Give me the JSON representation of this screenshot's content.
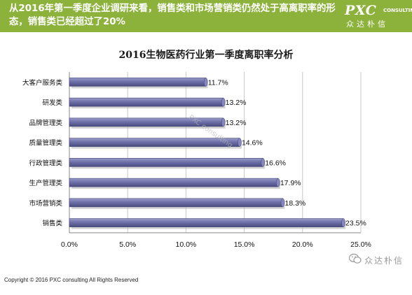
{
  "header": {
    "text": "从2016年第一季度企业调研来看，销售类和市场营销类仍然处于高离职率的形态，销售类已经超过了20%"
  },
  "logo": {
    "main": "PXC",
    "sub": "CONSULTING",
    "cn": "众达朴信"
  },
  "chart_data": {
    "type": "bar",
    "orientation": "horizontal",
    "title": "2016生物医药行业第一季度离职率分析",
    "categories": [
      "大客户服务类",
      "研发类",
      "品牌管理类",
      "质量管理类",
      "行政管理类",
      "生产管理类",
      "市场营销类",
      "销售类"
    ],
    "values": [
      11.7,
      13.2,
      13.2,
      14.6,
      16.6,
      17.9,
      18.3,
      23.5
    ],
    "value_labels": [
      "11.7%",
      "13.2%",
      "13.2%",
      "14.6%",
      "16.6%",
      "17.9%",
      "18.3%",
      "23.5%"
    ],
    "xlim": [
      0,
      25
    ],
    "ticks": [
      "0.0%",
      "5.0%",
      "10.0%",
      "15.0%",
      "20.0%",
      "25.0%"
    ],
    "tick_values": [
      0,
      5,
      10,
      15,
      20,
      25
    ],
    "grid": true,
    "bar_color": "#6e70a8",
    "xlabel": "",
    "ylabel": ""
  },
  "watermark": "PXC consulting",
  "footer": {
    "copyright": "Copyright © 2016  PXC consulting All Rights Reserved"
  },
  "brand": {
    "text": "众达朴信",
    "icon": "wechat-icon"
  },
  "colors": {
    "header_bg": "#8db23c",
    "bar": "#6e70a8"
  }
}
